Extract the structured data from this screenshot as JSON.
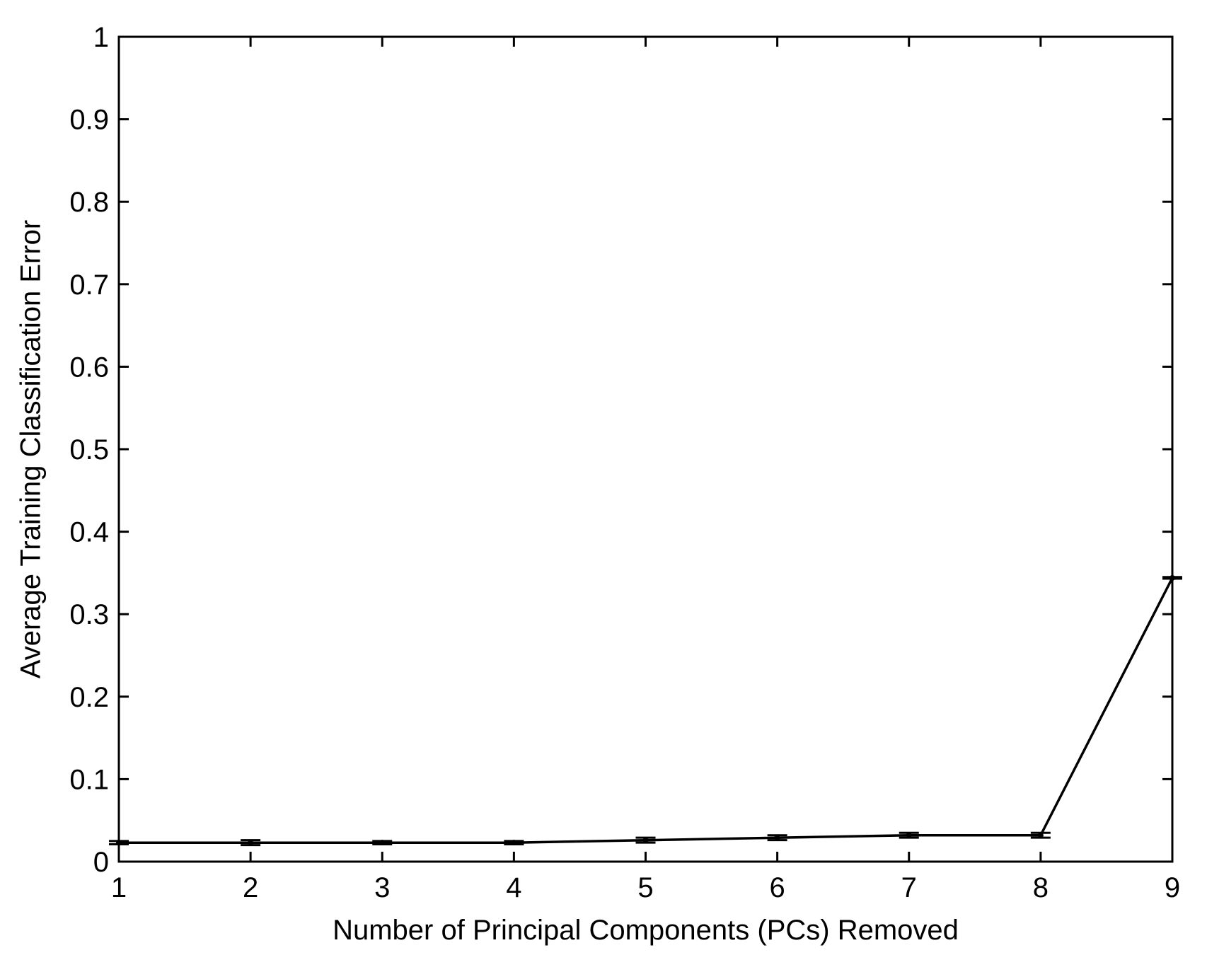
{
  "chart_data": {
    "type": "line",
    "title": "",
    "xlabel": "Number of Principal Components (PCs) Removed",
    "ylabel": "Average Training Classification Error",
    "xlim": [
      1,
      9
    ],
    "ylim": [
      0,
      1
    ],
    "x_ticks": [
      "1",
      "2",
      "3",
      "4",
      "5",
      "6",
      "7",
      "8",
      "9"
    ],
    "y_ticks": [
      "0",
      "0.1",
      "0.2",
      "0.3",
      "0.4",
      "0.5",
      "0.6",
      "0.7",
      "0.8",
      "0.9",
      "1"
    ],
    "grid": false,
    "legend": "none",
    "series": [
      {
        "x": [
          1,
          2,
          3,
          4,
          5,
          6,
          7,
          8,
          9
        ],
        "values": [
          0.023,
          0.023,
          0.023,
          0.023,
          0.026,
          0.029,
          0.032,
          0.032,
          0.344
        ],
        "error": [
          0.002,
          0.003,
          0.002,
          0.002,
          0.003,
          0.003,
          0.003,
          0.003,
          0.001
        ],
        "color": "#000000"
      }
    ]
  }
}
